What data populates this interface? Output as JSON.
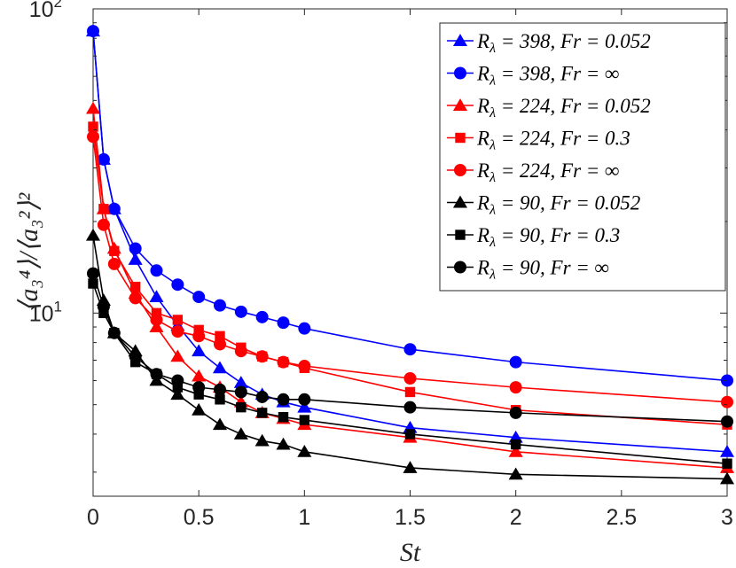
{
  "chart_data": {
    "type": "line",
    "title": "",
    "xlabel": "St",
    "ylabel": "⟨a₃⁴⟩/⟨a₃²⟩²",
    "xlim": [
      0,
      3
    ],
    "ylim": [
      2.5,
      100
    ],
    "yscale": "log",
    "x_ticks": [
      0,
      0.5,
      1,
      1.5,
      2,
      2.5,
      3
    ],
    "x_tick_labels": [
      "0",
      "0.5",
      "1",
      "1.5",
      "2",
      "2.5",
      "3"
    ],
    "y_ticks": [
      {
        "value": 10,
        "base": "10",
        "exp": "1"
      },
      {
        "value": 100,
        "base": "10",
        "exp": "2"
      }
    ],
    "legend_position": "top-right",
    "series": [
      {
        "name": "R_λ = 398, Fr = 0.052",
        "label_parts": [
          "R",
          "λ",
          " = 398, Fr = 0.052"
        ],
        "color": "#0000ff",
        "marker": "triangle",
        "x": [
          0,
          0.05,
          0.1,
          0.2,
          0.3,
          0.4,
          0.5,
          0.6,
          0.7,
          0.8,
          0.9,
          1,
          1.5,
          2,
          3
        ],
        "y": [
          84.5,
          32.0,
          22.0,
          15.0,
          11.3,
          9.1,
          7.5,
          6.6,
          5.9,
          5.4,
          5.1,
          4.9,
          4.2,
          3.9,
          3.5
        ]
      },
      {
        "name": "R_λ = 398, Fr = ∞",
        "label_parts": [
          "R",
          "λ",
          " = 398, Fr = ∞"
        ],
        "color": "#0000ff",
        "marker": "circle",
        "x": [
          0,
          0.05,
          0.1,
          0.2,
          0.3,
          0.4,
          0.5,
          0.6,
          0.7,
          0.8,
          0.9,
          1,
          1.5,
          2,
          3
        ],
        "y": [
          84.5,
          32.0,
          22.0,
          16.3,
          13.8,
          12.4,
          11.3,
          10.6,
          10.1,
          9.7,
          9.3,
          8.9,
          7.6,
          6.9,
          6.0
        ]
      },
      {
        "name": "R_λ = 224, Fr = 0.052",
        "label_parts": [
          "R",
          "λ",
          " = 224, Fr = 0.052"
        ],
        "color": "#ff0000",
        "marker": "triangle",
        "x": [
          0,
          0.05,
          0.1,
          0.2,
          0.3,
          0.4,
          0.5,
          0.6,
          0.7,
          0.8,
          0.9,
          1,
          1.5,
          2,
          3
        ],
        "y": [
          47.0,
          22.0,
          16.3,
          11.6,
          9.0,
          7.2,
          6.2,
          5.7,
          5.1,
          4.7,
          4.5,
          4.3,
          3.9,
          3.5,
          3.1
        ]
      },
      {
        "name": "R_λ = 224, Fr = 0.3",
        "label_parts": [
          "R",
          "λ",
          " = 224, Fr = 0.3"
        ],
        "color": "#ff0000",
        "marker": "square",
        "x": [
          0,
          0.05,
          0.1,
          0.2,
          0.3,
          0.4,
          0.5,
          0.6,
          0.7,
          0.8,
          0.9,
          1,
          1.5,
          2,
          3
        ],
        "y": [
          41.0,
          22.0,
          16.0,
          12.2,
          10.0,
          9.5,
          8.8,
          8.4,
          7.7,
          7.2,
          6.9,
          6.6,
          5.5,
          4.8,
          4.3
        ]
      },
      {
        "name": "R_λ = 224, Fr = ∞",
        "label_parts": [
          "R",
          "λ",
          " = 224, Fr = ∞"
        ],
        "color": "#ff0000",
        "marker": "circle",
        "x": [
          0,
          0.05,
          0.1,
          0.2,
          0.3,
          0.4,
          0.5,
          0.6,
          0.7,
          0.8,
          0.9,
          1,
          1.5,
          2,
          3
        ],
        "y": [
          38.0,
          19.5,
          14.5,
          11.2,
          9.5,
          8.7,
          8.4,
          7.9,
          7.5,
          7.2,
          6.9,
          6.7,
          6.1,
          5.7,
          5.1
        ]
      },
      {
        "name": "R_λ = 90, Fr = 0.052",
        "label_parts": [
          "R",
          "λ",
          " = 90, Fr = 0.052"
        ],
        "color": "#000000",
        "marker": "triangle",
        "x": [
          0,
          0.05,
          0.1,
          0.2,
          0.3,
          0.4,
          0.5,
          0.6,
          0.7,
          0.8,
          0.9,
          1,
          1.5,
          2,
          3
        ],
        "y": [
          18.0,
          11.0,
          8.6,
          7.5,
          6.0,
          5.4,
          4.8,
          4.3,
          4.0,
          3.8,
          3.7,
          3.5,
          3.1,
          2.95,
          2.85
        ]
      },
      {
        "name": "R_λ = 90, Fr = 0.3",
        "label_parts": [
          "R",
          "λ",
          " = 90, Fr = 0.3"
        ],
        "color": "#000000",
        "marker": "square",
        "x": [
          0,
          0.05,
          0.1,
          0.2,
          0.3,
          0.4,
          0.5,
          0.6,
          0.7,
          0.8,
          0.9,
          1,
          1.5,
          2,
          3
        ],
        "y": [
          12.5,
          10.0,
          8.6,
          6.9,
          6.3,
          5.7,
          5.4,
          5.2,
          4.9,
          4.7,
          4.55,
          4.45,
          4.0,
          3.7,
          3.2
        ]
      },
      {
        "name": "R_λ = 90, Fr = ∞",
        "label_parts": [
          "R",
          "λ",
          " = 90, Fr = ∞"
        ],
        "color": "#000000",
        "marker": "circle",
        "x": [
          0,
          0.05,
          0.1,
          0.2,
          0.3,
          0.4,
          0.5,
          0.6,
          0.7,
          0.8,
          0.9,
          1,
          1.5,
          2,
          3
        ],
        "y": [
          13.5,
          10.5,
          8.6,
          7.2,
          6.3,
          6.0,
          5.7,
          5.6,
          5.5,
          5.3,
          5.2,
          5.2,
          4.9,
          4.7,
          4.4
        ]
      }
    ]
  }
}
